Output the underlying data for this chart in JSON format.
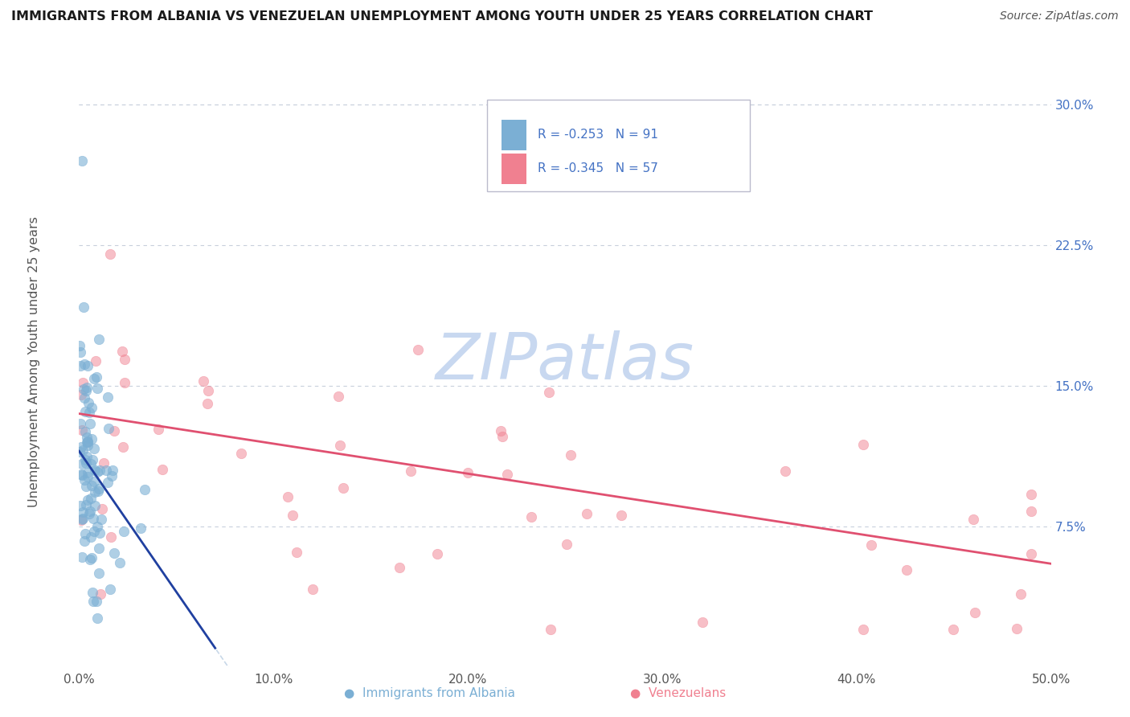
{
  "title": "IMMIGRANTS FROM ALBANIA VS VENEZUELAN UNEMPLOYMENT AMONG YOUTH UNDER 25 YEARS CORRELATION CHART",
  "source": "Source: ZipAtlas.com",
  "ylabel": "Unemployment Among Youth under 25 years",
  "xlim": [
    0.0,
    0.5
  ],
  "ylim": [
    0.0,
    0.325
  ],
  "xticks": [
    0.0,
    0.1,
    0.2,
    0.3,
    0.4,
    0.5
  ],
  "xticklabels": [
    "0.0%",
    "10.0%",
    "20.0%",
    "30.0%",
    "40.0%",
    "50.0%"
  ],
  "right_yticks": [
    0.075,
    0.15,
    0.225,
    0.3
  ],
  "right_yticklabels": [
    "7.5%",
    "15.0%",
    "22.5%",
    "30.0%"
  ],
  "legend_R1": "R = -0.253",
  "legend_N1": "N = 91",
  "legend_R2": "R = -0.345",
  "legend_N2": "N = 57",
  "color_albania": "#7bafd4",
  "color_venezuela": "#f08090",
  "color_trendline_albania_dark": "#2040a0",
  "color_trendline_albania_dashed": "#c8d8e8",
  "color_trendline_venezuela": "#e05070",
  "color_text_blue": "#4472c4",
  "color_grid": "#c8d0dc",
  "watermark": "ZIPatlas",
  "watermark_color": "#c8d8f0",
  "legend_label1": "Immigrants from Albania",
  "legend_label2": "Venezuelans",
  "seed": 123
}
